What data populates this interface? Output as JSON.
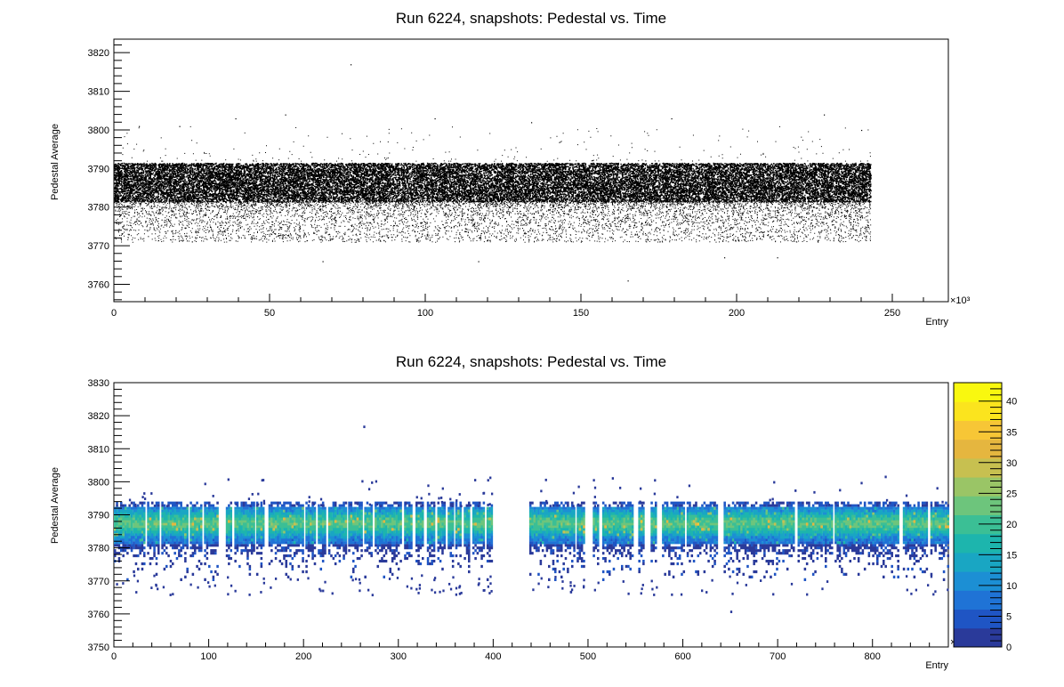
{
  "chart_data": [
    {
      "type": "scatter",
      "title": "Run 6224, snapshots: Pedestal vs. Time",
      "xlabel": "Entry",
      "ylabel": "Pedestal Average",
      "x_multiplier_label": "×10³",
      "xlim": [
        0,
        268
      ],
      "ylim": [
        3755.5,
        3823.5
      ],
      "xticks": [
        0,
        50,
        100,
        150,
        200,
        250
      ],
      "yticks": [
        3760,
        3770,
        3780,
        3790,
        3800,
        3810,
        3820
      ],
      "x_range_data": [
        0,
        243
      ],
      "y_dense_band": [
        3781.5,
        3791.5
      ],
      "y_sparse_band": [
        3771,
        3781.5
      ],
      "outliers": [
        {
          "x": 39,
          "y": 3803
        },
        {
          "x": 55,
          "y": 3804
        },
        {
          "x": 76,
          "y": 3817
        },
        {
          "x": 103,
          "y": 3803
        },
        {
          "x": 134,
          "y": 3802
        },
        {
          "x": 165,
          "y": 3761
        },
        {
          "x": 179,
          "y": 3803
        },
        {
          "x": 228,
          "y": 3804
        },
        {
          "x": 240,
          "y": 3800
        },
        {
          "x": 8,
          "y": 3801
        },
        {
          "x": 21,
          "y": 3801
        },
        {
          "x": 67,
          "y": 3766
        },
        {
          "x": 117,
          "y": 3766
        },
        {
          "x": 196,
          "y": 3767
        },
        {
          "x": 213,
          "y": 3767
        }
      ]
    },
    {
      "type": "heatmap",
      "title": "Run 6224, snapshots: Pedestal vs. Time",
      "xlabel": "Entry",
      "ylabel": "Pedestal Average",
      "x_multiplier_label": "×10³",
      "xlim": [
        0,
        880
      ],
      "ylim": [
        3750,
        3830
      ],
      "xticks": [
        0,
        100,
        200,
        300,
        400,
        500,
        600,
        700,
        800
      ],
      "yticks": [
        3750,
        3760,
        3770,
        3780,
        3790,
        3800,
        3810,
        3820,
        3830
      ],
      "zlim": [
        0,
        43
      ],
      "zticks": [
        0,
        5,
        10,
        15,
        20,
        25,
        30,
        35,
        40
      ],
      "data_segments": [
        [
          0,
          18
        ],
        [
          20,
          32
        ],
        [
          35,
          47
        ],
        [
          50,
          78
        ],
        [
          80,
          93
        ],
        [
          95,
          110
        ],
        [
          118,
          123
        ],
        [
          127,
          138
        ],
        [
          140,
          148
        ],
        [
          150,
          158
        ],
        [
          163,
          200
        ],
        [
          202,
          212
        ],
        [
          215,
          222
        ],
        [
          226,
          245
        ],
        [
          247,
          262
        ],
        [
          264,
          272
        ],
        [
          275,
          302
        ],
        [
          306,
          314
        ],
        [
          318,
          326
        ],
        [
          330,
          338
        ],
        [
          341,
          348
        ],
        [
          352,
          357
        ],
        [
          360,
          366
        ],
        [
          369,
          375
        ],
        [
          378,
          390
        ],
        [
          393,
          398
        ],
        [
          438,
          478
        ],
        [
          480,
          485
        ],
        [
          488,
          495
        ],
        [
          505,
          510
        ],
        [
          515,
          548
        ],
        [
          553,
          558
        ],
        [
          566,
          572
        ],
        [
          578,
          602
        ],
        [
          604,
          635
        ],
        [
          643,
          672
        ],
        [
          674,
          718
        ],
        [
          721,
          758
        ],
        [
          760,
          828
        ],
        [
          832,
          858
        ],
        [
          861,
          880
        ]
      ],
      "peak_y": 3787
    }
  ]
}
